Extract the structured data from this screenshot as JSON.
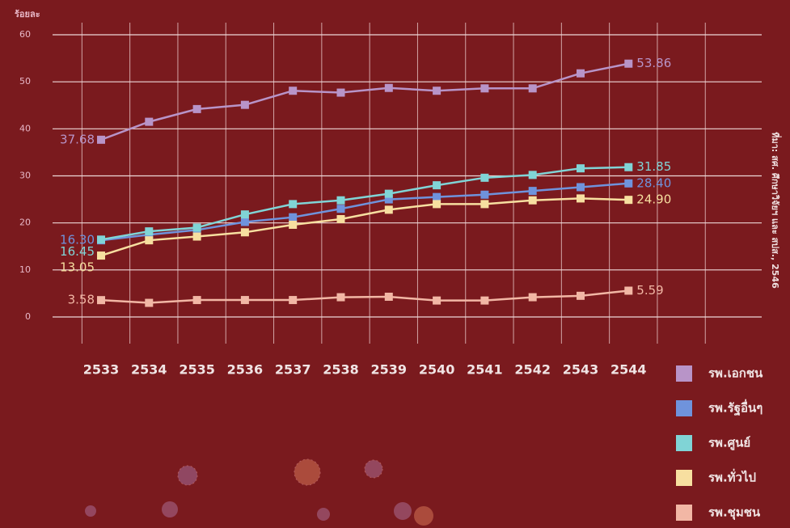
{
  "chart_data": {
    "type": "line",
    "y_label": "ร้อยละ",
    "source": "ที่มา: สศ. ศึกษาวิจัยฯ และ สปส., 2546",
    "categories": [
      "2533",
      "2534",
      "2535",
      "2536",
      "2537",
      "2538",
      "2539",
      "2540",
      "2541",
      "2542",
      "2543",
      "2544"
    ],
    "ylim": [
      0,
      60
    ],
    "yticks": [
      0,
      10,
      20,
      30,
      40,
      50,
      60
    ],
    "grid": true,
    "series": [
      {
        "name": "รพ.เอกชน",
        "color": "#b894c8",
        "values": [
          37.68,
          41.5,
          44.2,
          45.1,
          48.1,
          47.7,
          48.7,
          48.1,
          48.6,
          48.6,
          51.8,
          53.86
        ],
        "value_labels": [
          "37.68",
          null,
          null,
          null,
          null,
          null,
          null,
          null,
          null,
          null,
          null,
          "53.86"
        ]
      },
      {
        "name": "รพ.รัฐอื่นๆ",
        "color": "#6f93dc",
        "values": [
          16.3,
          17.5,
          18.5,
          20.2,
          21.2,
          23,
          25,
          25.5,
          26,
          26.8,
          27.6,
          28.4
        ],
        "value_labels": [
          "16.30",
          null,
          null,
          null,
          null,
          null,
          null,
          null,
          null,
          null,
          null,
          "28.40"
        ]
      },
      {
        "name": "รพ.ศูนย์",
        "color": "#80d4d6",
        "values": [
          16.45,
          18.2,
          19,
          21.8,
          24,
          24.8,
          26.2,
          28,
          29.6,
          30.2,
          31.6,
          31.85
        ],
        "value_labels": [
          "16.45",
          null,
          null,
          null,
          null,
          null,
          null,
          null,
          null,
          null,
          null,
          "31.85"
        ]
      },
      {
        "name": "รพ.ทั่วไป",
        "color": "#f7dfa0",
        "values": [
          13.05,
          16.3,
          17.1,
          18,
          19.6,
          20.8,
          22.8,
          24,
          24,
          24.8,
          25.2,
          24.9
        ],
        "value_labels": [
          "13.05",
          null,
          null,
          null,
          null,
          null,
          null,
          null,
          null,
          null,
          null,
          "24.90"
        ]
      },
      {
        "name": "รพ.ชุมชน",
        "color": "#f2b7a5",
        "values": [
          3.58,
          3.0,
          3.6,
          3.6,
          3.6,
          4.2,
          4.3,
          3.5,
          3.5,
          4.2,
          4.5,
          5.59
        ],
        "value_labels": [
          "3.58",
          null,
          null,
          null,
          null,
          null,
          null,
          null,
          null,
          null,
          null,
          "5.59"
        ]
      }
    ]
  }
}
